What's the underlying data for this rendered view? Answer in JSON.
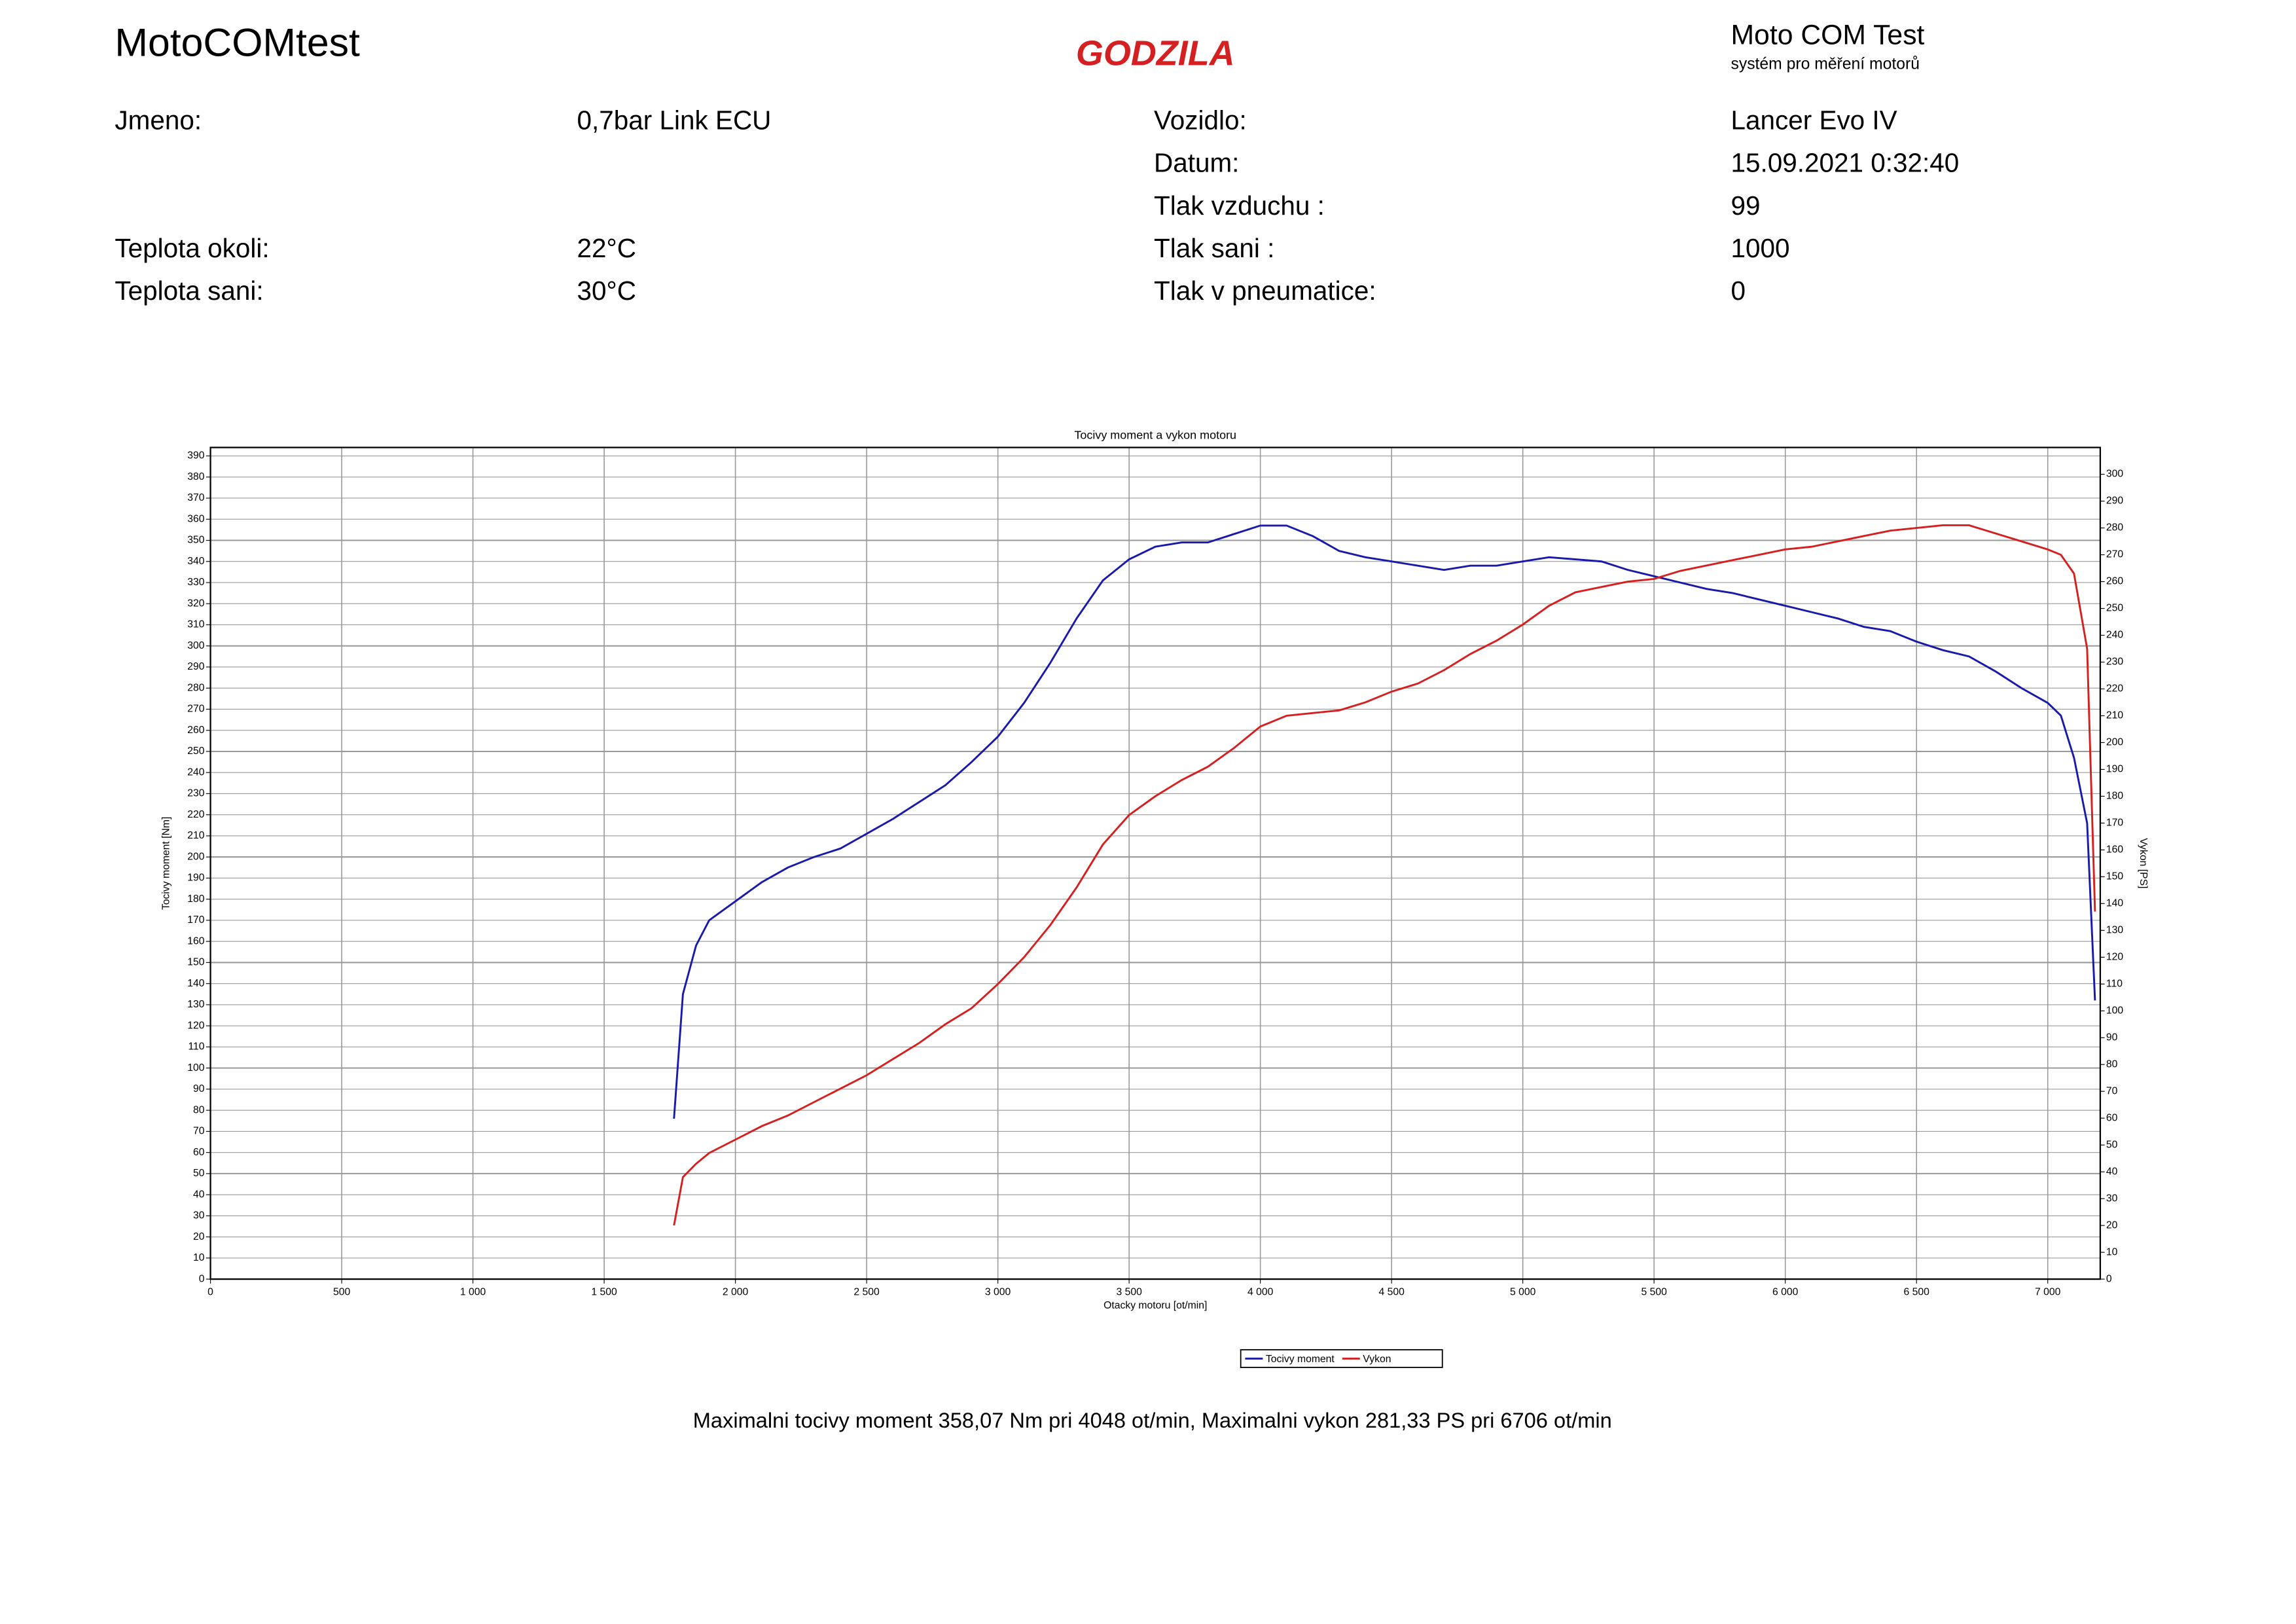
{
  "header": {
    "title": "MotoCOMtest",
    "logo": "GODZILA",
    "brand": "Moto COM Test",
    "brand_subtitle": "systém pro měření motorů"
  },
  "fields_left": [
    {
      "label": "Jmeno:",
      "value": "0,7bar Link ECU"
    },
    {
      "label": "Teplota okoli:",
      "value": "22°C"
    },
    {
      "label": "Teplota sani:",
      "value": "30°C"
    }
  ],
  "fields_right": [
    {
      "label": "Vozidlo:",
      "value": "Lancer Evo IV"
    },
    {
      "label": "Datum:",
      "value": "15.09.2021 0:32:40"
    },
    {
      "label": "Tlak vzduchu :",
      "value": "99"
    },
    {
      "label": "Tlak sani :",
      "value": "1000"
    },
    {
      "label": "Tlak v pneumatice:",
      "value": "0"
    }
  ],
  "chart_data": {
    "type": "line",
    "title": "Tocivy moment a vykon motoru",
    "x_label": "Otacky motoru [ot/min]",
    "y_label": "Tocivy moment [Nm]",
    "y2_label": "Vykon [PS]",
    "xlim": [
      0,
      7200
    ],
    "xticks": [
      0,
      500,
      {
        "value": 1000,
        "label": "1 000"
      },
      {
        "value": 1500,
        "label": "1 500"
      },
      {
        "value": 2000,
        "label": "2 000"
      },
      {
        "value": 2500,
        "label": "2 500"
      },
      {
        "value": 3000,
        "label": "3 000"
      },
      {
        "value": 3500,
        "label": "3 500"
      },
      {
        "value": 4000,
        "label": "4 000"
      },
      {
        "value": 4500,
        "label": "4 500"
      },
      {
        "value": 5000,
        "label": "5 000"
      },
      {
        "value": 5500,
        "label": "5 500"
      },
      {
        "value": 6000,
        "label": "6 000"
      },
      {
        "value": 6500,
        "label": "6 500"
      },
      {
        "value": 7000,
        "label": "7 000"
      }
    ],
    "ylim": [
      0,
      394
    ],
    "yticks": [
      0,
      10,
      20,
      30,
      40,
      50,
      60,
      70,
      80,
      90,
      100,
      110,
      120,
      130,
      140,
      150,
      160,
      170,
      180,
      190,
      200,
      210,
      220,
      230,
      240,
      250,
      260,
      270,
      280,
      290,
      300,
      310,
      320,
      330,
      340,
      350,
      360,
      370,
      380,
      390
    ],
    "y2lim": [
      0,
      310
    ],
    "y2ticks": [
      0,
      10,
      20,
      30,
      40,
      50,
      60,
      70,
      80,
      90,
      100,
      110,
      120,
      130,
      140,
      150,
      160,
      170,
      180,
      190,
      200,
      210,
      220,
      230,
      240,
      250,
      260,
      270,
      280,
      290,
      300
    ],
    "grid": true,
    "x": [
      1766,
      1800,
      1850,
      1900,
      2000,
      2100,
      2200,
      2300,
      2400,
      2500,
      2600,
      2700,
      2800,
      2900,
      3000,
      3100,
      3200,
      3300,
      3400,
      3500,
      3600,
      3700,
      3800,
      3900,
      4000,
      4100,
      4200,
      4300,
      4400,
      4500,
      4600,
      4700,
      4800,
      4900,
      5000,
      5100,
      5200,
      5300,
      5400,
      5500,
      5600,
      5700,
      5800,
      5900,
      6000,
      6100,
      6200,
      6300,
      6400,
      6500,
      6600,
      6700,
      6800,
      6900,
      7000,
      7050,
      7100,
      7150,
      7180
    ],
    "series": [
      {
        "name": "Tocivy moment",
        "color": "#1a1aaa",
        "values": [
          76,
          135,
          158,
          170,
          179,
          188,
          195,
          200,
          204,
          211,
          218,
          226,
          234,
          245,
          257,
          273,
          292,
          313,
          331,
          341,
          347,
          349,
          349,
          353,
          357,
          357,
          352,
          345,
          342,
          340,
          338,
          336,
          338,
          338,
          340,
          342,
          341,
          340,
          336,
          333,
          330,
          327,
          325,
          322,
          319,
          316,
          313,
          309,
          307,
          302,
          298,
          295,
          288,
          280,
          273,
          267,
          247,
          216,
          132
        ]
      },
      {
        "name": "Vykon",
        "color": "#d42020",
        "axis": "y2",
        "values": [
          20,
          38,
          43,
          47,
          52,
          57,
          61,
          66,
          71,
          76,
          82,
          88,
          95,
          101,
          110,
          120,
          132,
          146,
          162,
          173,
          180,
          186,
          191,
          198,
          206,
          210,
          211,
          212,
          215,
          219,
          222,
          227,
          233,
          238,
          244,
          251,
          256,
          258,
          260,
          261,
          264,
          266,
          268,
          270,
          272,
          273,
          275,
          277,
          279,
          280,
          281,
          281,
          278,
          275,
          272,
          270,
          263,
          235,
          137
        ]
      }
    ],
    "annotation": "Maximalni tocivy moment 358,07 Nm pri 4048 ot/min,  Maximalni vykon 281,33 PS pri 6706 ot/min"
  }
}
